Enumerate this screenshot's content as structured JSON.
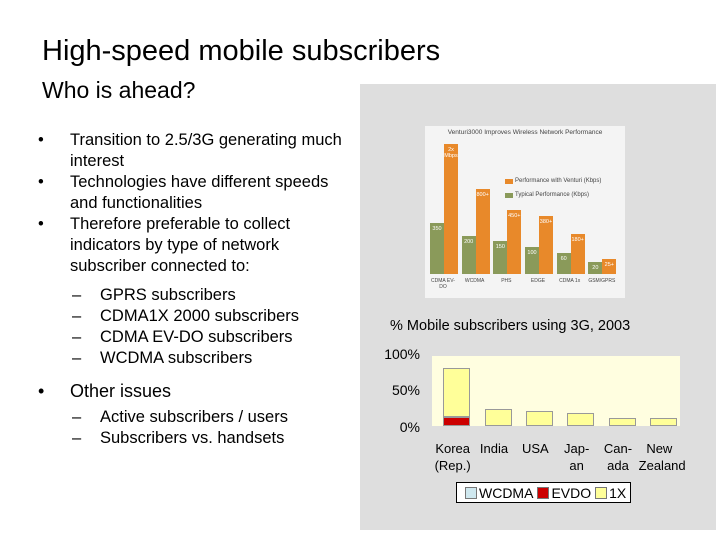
{
  "slide": {
    "title": "High-speed mobile subscribers",
    "subtitle": "Who is ahead?"
  },
  "bullets": [
    {
      "text": "Transition to 2.5/3G generating much interest"
    },
    {
      "text": "Technologies have different speeds and functionalities"
    },
    {
      "text": "Therefore preferable to collect indicators by type of network subscriber connected to:"
    }
  ],
  "sub_bullets_network": [
    "GPRS subscribers",
    "CDMA1X 2000 subscribers",
    "CDMA EV-DO subscribers",
    "WCDMA subscribers"
  ],
  "other_issues": {
    "label": "Other issues",
    "items": [
      "Active subscribers / users",
      "Subscribers vs. handsets"
    ]
  },
  "markers": {
    "bullet": "•",
    "dash": "–"
  },
  "embedded_chart": {
    "title": "Venturi3000 Improves Wireless Network Performance",
    "legend": [
      "Performance with Venturi (Kbps)",
      "Typical Performance (Kbps)"
    ],
    "colors": {
      "venturi": "#e8892a",
      "typical": "#8a9a5a"
    },
    "categories": [
      "CDMA EV-DO",
      "WCDMA",
      "PHS",
      "EDGE",
      "CDMA 1x",
      "GSM/GPRS"
    ],
    "venturi_values": [
      2000,
      800,
      450,
      380,
      180,
      25
    ],
    "venturi_labels": [
      "2x Mbps",
      "800+",
      "450+",
      "380+",
      "180+",
      "25+"
    ],
    "typical_values": [
      350,
      200,
      150,
      100,
      60,
      20
    ],
    "typical_labels": [
      "350",
      "200",
      "150",
      "100",
      "60",
      "20"
    ]
  },
  "chart_data": {
    "type": "bar",
    "title": "% Mobile subscribers using 3G, 2003",
    "categories": [
      "Korea (Rep.)",
      "India",
      "USA",
      "Japan",
      "Canada",
      "New Zealand"
    ],
    "category_lines": [
      [
        "Korea",
        "(Rep.)"
      ],
      [
        "India",
        ""
      ],
      [
        "USA",
        ""
      ],
      [
        "Jap-",
        "an"
      ],
      [
        "Can-",
        "ada"
      ],
      [
        "New",
        "Zealand"
      ]
    ],
    "series": [
      {
        "name": "WCDMA",
        "values": [
          0,
          0,
          0,
          0,
          0,
          0
        ],
        "color": "#cfe8ef"
      },
      {
        "name": "EVDO",
        "values": [
          13,
          0,
          0,
          0,
          0,
          0
        ],
        "color": "#cc0000"
      },
      {
        "name": "1X",
        "values": [
          70,
          24,
          21,
          19,
          12,
          11
        ],
        "color": "#ffff99"
      }
    ],
    "ylim": [
      0,
      100
    ],
    "yticks": [
      "0%",
      "50%",
      "100%"
    ],
    "legend": [
      "WCDMA",
      "EVDO",
      "1X"
    ]
  }
}
